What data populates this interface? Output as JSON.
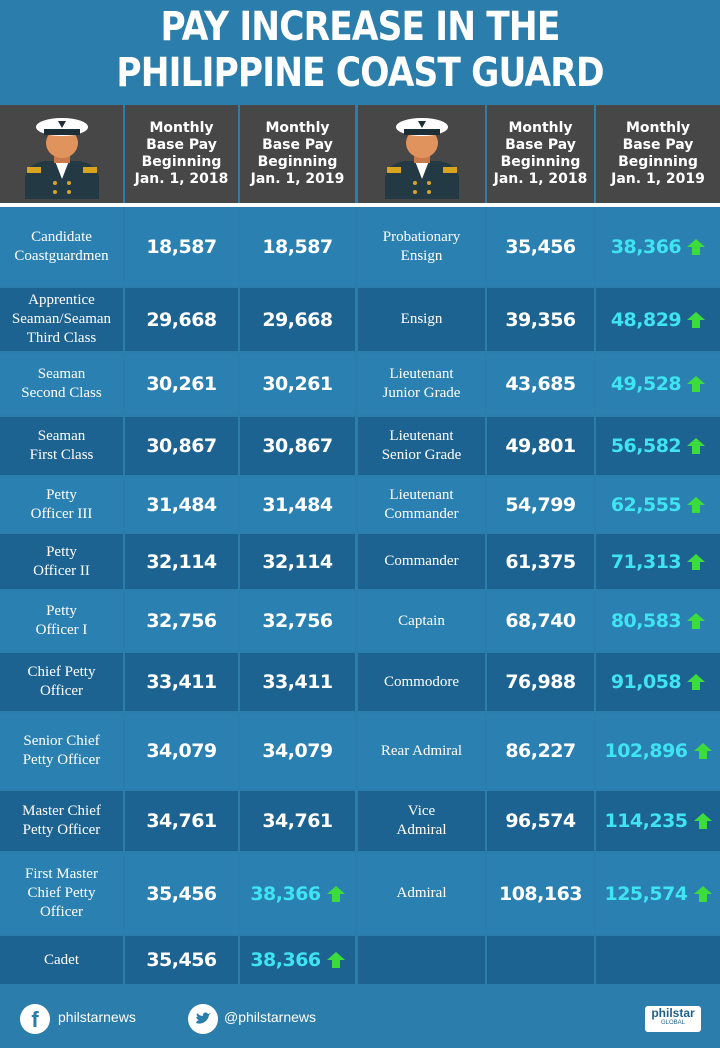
{
  "title": [
    "PAY INCREASE IN THE",
    "PHILIPPINE COAST GUARD"
  ],
  "tables": [
    {
      "headers": [
        "Monthly\nBase Pay\nBeginning\nJan. 1, 2018",
        "Monthly\nBase Pay\nBeginning\nJan. 1, 2019"
      ],
      "rows": [
        [
          "Candidate\nCoastguardmen",
          "18,587",
          "18,587"
        ],
        [
          "Apprentice\nSeaman/Seaman\nThird Class",
          "29,668",
          "29,668"
        ],
        [
          "Seaman\nSecond Class",
          "30,261",
          "30,261"
        ],
        [
          "Seaman\nFirst Class",
          "30,867",
          "30,867"
        ],
        [
          "Petty\nOfficer III",
          "31,484",
          "31,484"
        ],
        [
          "Petty\nOfficer II",
          "32,114",
          "32,114"
        ],
        [
          "Petty\nOfficer I",
          "32,756",
          "32,756"
        ],
        [
          "Chief Petty\nOfficer",
          "33,411",
          "33,411"
        ],
        [
          "Senior Chief\nPetty Officer",
          "34,079",
          "34,079"
        ],
        [
          "Master Chief\nPetty Officer",
          "34,761",
          "34,761"
        ],
        [
          "First Master\nChief Petty\nOfficer",
          "35,456",
          "38,366"
        ],
        [
          "Cadet",
          "35,456",
          "38,366"
        ]
      ]
    },
    {
      "headers": [
        "Monthly\nBase Pay\nBeginning\nJan. 1, 2018",
        "Monthly\nBase Pay\nBeginning\nJan. 1, 2019"
      ],
      "rows": [
        [
          "Probationary\nEnsign",
          "35,456",
          "38,366"
        ],
        [
          "Ensign",
          "39,356",
          "48,829"
        ],
        [
          "Lieutenant\nJunior Grade",
          "43,685",
          "49,528"
        ],
        [
          "Lieutenant\nSenior Grade",
          "49,801",
          "56,582"
        ],
        [
          "Lieutenant\nCommander",
          "54,799",
          "62,555"
        ],
        [
          "Commander",
          "61,375",
          "71,313"
        ],
        [
          "Captain",
          "68,740",
          "80,583"
        ],
        [
          "Commodore",
          "76,988",
          "91,058"
        ],
        [
          "Rear Admiral",
          "86,227",
          "102,896"
        ],
        [
          "Vice\nAdmiral",
          "96,574",
          "114,235"
        ],
        [
          "Admiral",
          "108,163",
          "125,574"
        ]
      ]
    }
  ],
  "footer": {
    "facebook": "philstarnews",
    "twitter": "@philstarnews",
    "logo": "philstar",
    "logo_sub": "GLOBAL"
  }
}
